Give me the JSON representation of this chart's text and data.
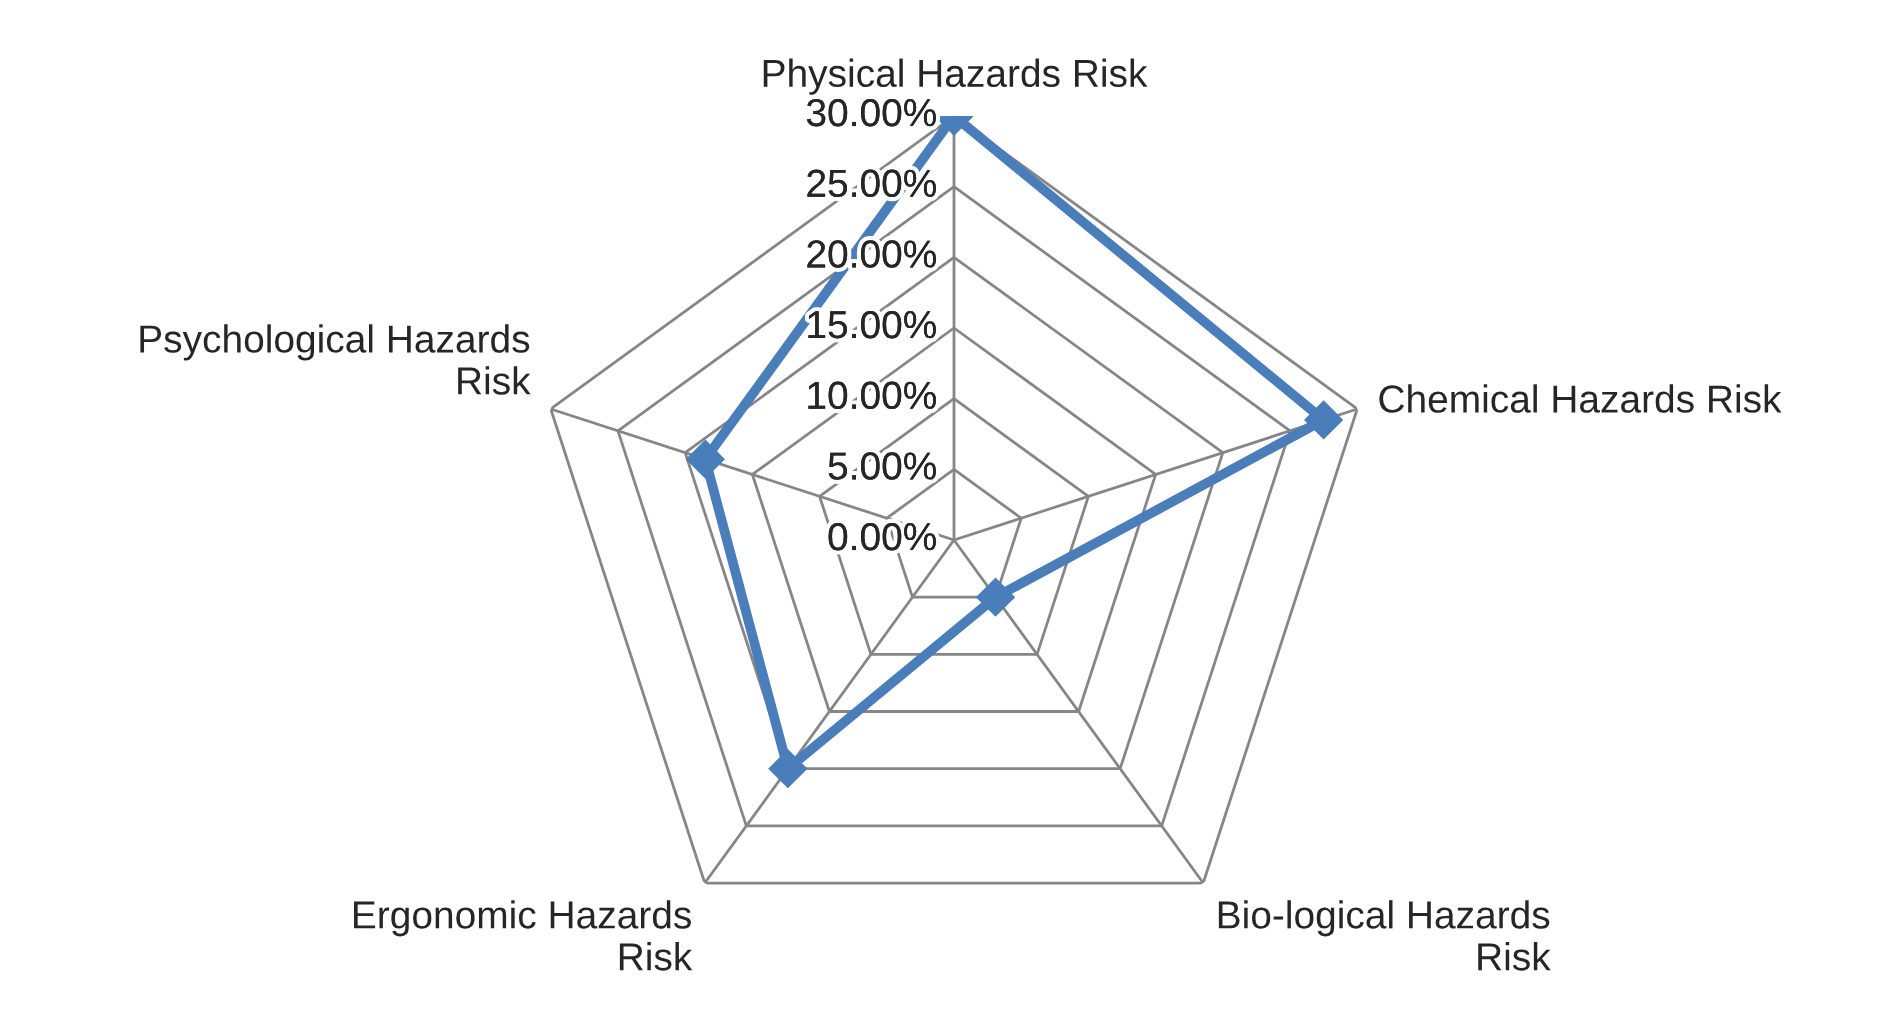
{
  "chart_data": {
    "type": "radar",
    "categories": [
      "Physical Hazards Risk",
      "Chemical Hazards Risk",
      "Bio-logical Hazards Risk",
      "Ergonomic Hazards Risk",
      "Psychological Hazards Risk"
    ],
    "series": [
      {
        "color": "#4a7ebb",
        "values": [
          30,
          27.5,
          5,
          20,
          18.5
        ]
      }
    ],
    "ylim": [
      0,
      30
    ],
    "yticks": [
      {
        "value": 0,
        "label": "0.00%"
      },
      {
        "value": 5,
        "label": "5.00%"
      },
      {
        "value": 10,
        "label": "10.00%"
      },
      {
        "value": 15,
        "label": "15.00%"
      },
      {
        "value": 20,
        "label": "20.00%"
      },
      {
        "value": 25,
        "label": "25.00%"
      },
      {
        "value": 30,
        "label": "30.00%"
      }
    ],
    "grid": true,
    "marker": "diamond",
    "line_style": "solid"
  }
}
